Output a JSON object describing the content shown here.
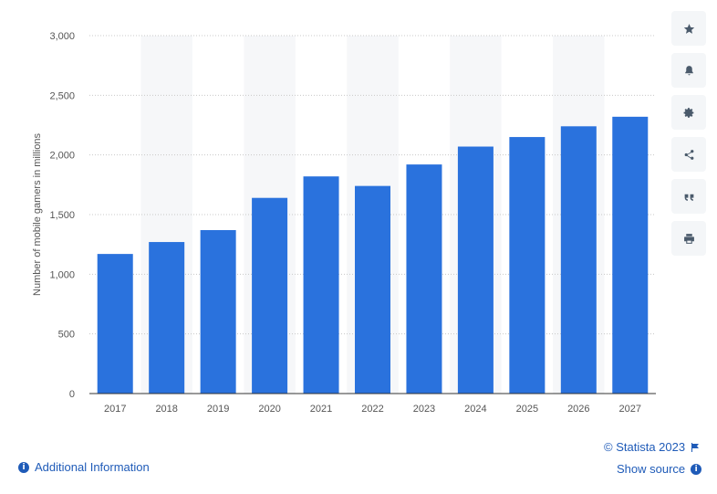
{
  "chart_data": {
    "type": "bar",
    "title": "",
    "xlabel": "",
    "ylabel": "Number of mobile gamers in millions",
    "categories": [
      "2017",
      "2018",
      "2019",
      "2020",
      "2021",
      "2022",
      "2023",
      "2024",
      "2025",
      "2026",
      "2027"
    ],
    "values": [
      1170,
      1270,
      1370,
      1640,
      1820,
      1740,
      1920,
      2070,
      2150,
      2240,
      2320
    ],
    "ylim": [
      0,
      3000
    ],
    "yticks": [
      0,
      500,
      1000,
      1500,
      2000,
      2500,
      3000
    ],
    "ytick_labels": [
      "0",
      "500",
      "1,000",
      "1,500",
      "2,000",
      "2,500",
      "3,000"
    ],
    "grid": true,
    "bar_color": "#2a72dd",
    "band_color": "#f6f7f9"
  },
  "toolbar": {
    "icons": [
      "star-icon",
      "bell-icon",
      "gear-icon",
      "share-icon",
      "quote-icon",
      "print-icon"
    ]
  },
  "footer": {
    "copyright": "© Statista 2023",
    "show_source": "Show source",
    "additional_info": "Additional Information"
  },
  "colors": {
    "link": "#1f5bb8",
    "tick_text": "#555555"
  }
}
